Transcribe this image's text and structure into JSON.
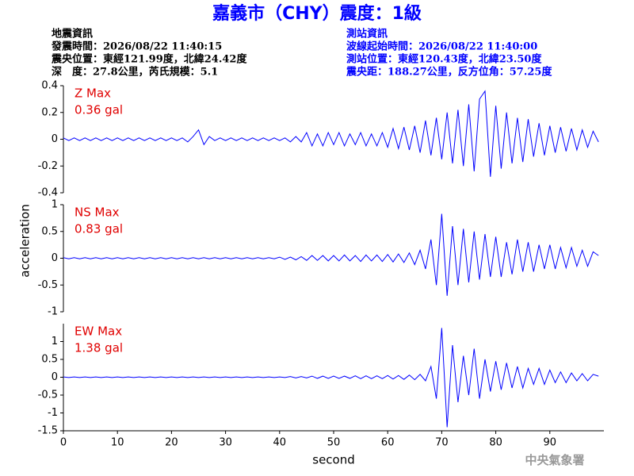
{
  "header": {
    "title": "嘉義市（CHY）震度：1級",
    "left": [
      "地震資訊",
      "發震時間：2026/08/22 11:40:15",
      "震央位置：東經121.99度，北緯24.42度",
      "深　度：27.8公里，芮氏規模：5.1"
    ],
    "right": [
      "測站資訊",
      "波線起始時間：2026/08/22 11:40:00",
      "測站位置：東經120.43度，北緯23.50度",
      "震央距：188.27公里，反方位角：57.25度"
    ]
  },
  "footer": "中央氣象署",
  "chart_data": [
    {
      "type": "line",
      "label": "Z Max",
      "max_label": "0.36 gal",
      "color": "#0000ff",
      "annotation_color": "#e00000",
      "x": [
        0,
        1,
        2,
        3,
        4,
        5,
        6,
        7,
        8,
        9,
        10,
        11,
        12,
        13,
        14,
        15,
        16,
        17,
        18,
        19,
        20,
        21,
        22,
        23,
        24,
        25,
        26,
        27,
        28,
        29,
        30,
        31,
        32,
        33,
        34,
        35,
        36,
        37,
        38,
        39,
        40,
        41,
        42,
        43,
        44,
        45,
        46,
        47,
        48,
        49,
        50,
        51,
        52,
        53,
        54,
        55,
        56,
        57,
        58,
        59,
        60,
        61,
        62,
        63,
        64,
        65,
        66,
        67,
        68,
        69,
        70,
        71,
        72,
        73,
        74,
        75,
        76,
        77,
        78,
        79,
        80,
        81,
        82,
        83,
        84,
        85,
        86,
        87,
        88,
        89,
        90,
        91,
        92,
        93,
        94,
        95,
        96,
        97,
        98,
        99
      ],
      "values": [
        0.01,
        -0.01,
        0.01,
        -0.01,
        0.01,
        -0.01,
        0.01,
        -0.01,
        0.01,
        -0.01,
        0.01,
        -0.01,
        0.01,
        -0.01,
        0.01,
        -0.01,
        0.01,
        -0.01,
        0.01,
        -0.01,
        0.01,
        -0.01,
        0.01,
        -0.02,
        0.02,
        0.07,
        -0.04,
        0.02,
        -0.01,
        0.01,
        -0.01,
        0.01,
        -0.01,
        0.01,
        -0.01,
        0.01,
        -0.01,
        0.01,
        -0.01,
        0.01,
        -0.01,
        0.01,
        -0.02,
        0.02,
        -0.02,
        0.05,
        -0.05,
        0.04,
        -0.05,
        0.05,
        -0.04,
        0.05,
        -0.05,
        0.04,
        -0.04,
        0.05,
        -0.05,
        0.04,
        -0.05,
        0.05,
        -0.06,
        0.08,
        -0.07,
        0.09,
        -0.08,
        0.1,
        -0.1,
        0.14,
        -0.12,
        0.16,
        -0.15,
        0.2,
        -0.18,
        0.22,
        -0.2,
        0.26,
        -0.24,
        0.3,
        0.36,
        -0.28,
        0.25,
        -0.22,
        0.2,
        -0.18,
        0.16,
        -0.17,
        0.15,
        -0.13,
        0.12,
        -0.12,
        0.1,
        -0.1,
        0.09,
        -0.09,
        0.08,
        -0.08,
        0.07,
        -0.06,
        0.06,
        -0.02
      ],
      "xlim": [
        0,
        100
      ],
      "ylim": [
        -0.4,
        0.4
      ],
      "yticks": [
        -0.4,
        -0.2,
        0,
        0.2,
        0.4
      ]
    },
    {
      "type": "line",
      "label": "NS Max",
      "max_label": "0.83 gal",
      "ylabel": "acceleration",
      "color": "#0000ff",
      "annotation_color": "#e00000",
      "x": [
        0,
        1,
        2,
        3,
        4,
        5,
        6,
        7,
        8,
        9,
        10,
        11,
        12,
        13,
        14,
        15,
        16,
        17,
        18,
        19,
        20,
        21,
        22,
        23,
        24,
        25,
        26,
        27,
        28,
        29,
        30,
        31,
        32,
        33,
        34,
        35,
        36,
        37,
        38,
        39,
        40,
        41,
        42,
        43,
        44,
        45,
        46,
        47,
        48,
        49,
        50,
        51,
        52,
        53,
        54,
        55,
        56,
        57,
        58,
        59,
        60,
        61,
        62,
        63,
        64,
        65,
        66,
        67,
        68,
        69,
        70,
        71,
        72,
        73,
        74,
        75,
        76,
        77,
        78,
        79,
        80,
        81,
        82,
        83,
        84,
        85,
        86,
        87,
        88,
        89,
        90,
        91,
        92,
        93,
        94,
        95,
        96,
        97,
        98,
        99
      ],
      "values": [
        0.01,
        -0.01,
        0.01,
        -0.01,
        0.01,
        -0.01,
        0.01,
        -0.01,
        0.01,
        -0.01,
        0.01,
        -0.01,
        0.01,
        -0.01,
        0.01,
        -0.01,
        0.01,
        -0.01,
        0.01,
        -0.01,
        0.01,
        -0.01,
        0.01,
        -0.01,
        0.01,
        -0.01,
        0.01,
        -0.01,
        0.01,
        -0.01,
        0.01,
        -0.01,
        0.01,
        -0.01,
        0.01,
        -0.01,
        0.01,
        -0.01,
        0.01,
        -0.01,
        0.02,
        -0.02,
        0.02,
        -0.03,
        0.03,
        -0.04,
        0.05,
        -0.04,
        0.05,
        -0.05,
        0.05,
        -0.05,
        0.06,
        -0.05,
        0.05,
        -0.06,
        0.06,
        -0.05,
        0.06,
        -0.06,
        0.07,
        -0.07,
        0.08,
        -0.08,
        0.1,
        -0.12,
        0.15,
        -0.2,
        0.35,
        -0.5,
        0.83,
        -0.7,
        0.6,
        -0.5,
        0.55,
        -0.45,
        0.5,
        -0.4,
        0.45,
        -0.35,
        0.4,
        -0.35,
        0.3,
        -0.3,
        0.35,
        -0.25,
        0.3,
        -0.25,
        0.25,
        -0.2,
        0.25,
        -0.2,
        0.2,
        -0.18,
        0.2,
        -0.15,
        0.15,
        -0.15,
        0.12,
        0.05
      ],
      "xlim": [
        0,
        100
      ],
      "ylim": [
        -1,
        1
      ],
      "yticks": [
        -1,
        -0.5,
        0,
        0.5,
        1
      ]
    },
    {
      "type": "line",
      "label": "EW Max",
      "max_label": "1.38 gal",
      "xlabel": "second",
      "color": "#0000ff",
      "annotation_color": "#e00000",
      "x": [
        0,
        1,
        2,
        3,
        4,
        5,
        6,
        7,
        8,
        9,
        10,
        11,
        12,
        13,
        14,
        15,
        16,
        17,
        18,
        19,
        20,
        21,
        22,
        23,
        24,
        25,
        26,
        27,
        28,
        29,
        30,
        31,
        32,
        33,
        34,
        35,
        36,
        37,
        38,
        39,
        40,
        41,
        42,
        43,
        44,
        45,
        46,
        47,
        48,
        49,
        50,
        51,
        52,
        53,
        54,
        55,
        56,
        57,
        58,
        59,
        60,
        61,
        62,
        63,
        64,
        65,
        66,
        67,
        68,
        69,
        70,
        71,
        72,
        73,
        74,
        75,
        76,
        77,
        78,
        79,
        80,
        81,
        82,
        83,
        84,
        85,
        86,
        87,
        88,
        89,
        90,
        91,
        92,
        93,
        94,
        95,
        96,
        97,
        98,
        99
      ],
      "values": [
        0.01,
        -0.01,
        0.01,
        -0.01,
        0.01,
        -0.01,
        0.01,
        -0.01,
        0.01,
        -0.01,
        0.01,
        -0.01,
        0.01,
        -0.01,
        0.01,
        -0.01,
        0.01,
        -0.01,
        0.01,
        -0.01,
        0.01,
        -0.01,
        0.01,
        -0.01,
        0.01,
        -0.01,
        0.01,
        -0.01,
        0.01,
        -0.01,
        0.01,
        -0.01,
        0.01,
        -0.01,
        0.01,
        -0.01,
        0.01,
        -0.01,
        0.01,
        -0.01,
        0.01,
        -0.01,
        0.02,
        -0.02,
        0.02,
        -0.02,
        0.03,
        -0.03,
        0.03,
        -0.03,
        0.03,
        -0.03,
        0.03,
        -0.03,
        0.04,
        -0.04,
        0.04,
        -0.04,
        0.04,
        -0.04,
        0.05,
        -0.05,
        0.05,
        -0.06,
        0.06,
        -0.07,
        0.08,
        -0.1,
        0.3,
        -0.6,
        1.38,
        -1.4,
        0.9,
        -0.7,
        0.6,
        -0.5,
        0.8,
        -0.6,
        0.5,
        -0.4,
        0.45,
        -0.35,
        0.4,
        -0.3,
        0.3,
        -0.3,
        0.25,
        -0.2,
        0.25,
        -0.2,
        0.2,
        -0.15,
        0.15,
        -0.15,
        0.12,
        -0.1,
        0.1,
        -0.1,
        0.08,
        0.03
      ],
      "xlim": [
        0,
        100
      ],
      "ylim": [
        -1.5,
        1.5
      ],
      "yticks": [
        -1.5,
        -1,
        -0.5,
        0,
        0.5,
        1
      ],
      "xticks": [
        0,
        10,
        20,
        30,
        40,
        50,
        60,
        70,
        80,
        90
      ]
    }
  ]
}
